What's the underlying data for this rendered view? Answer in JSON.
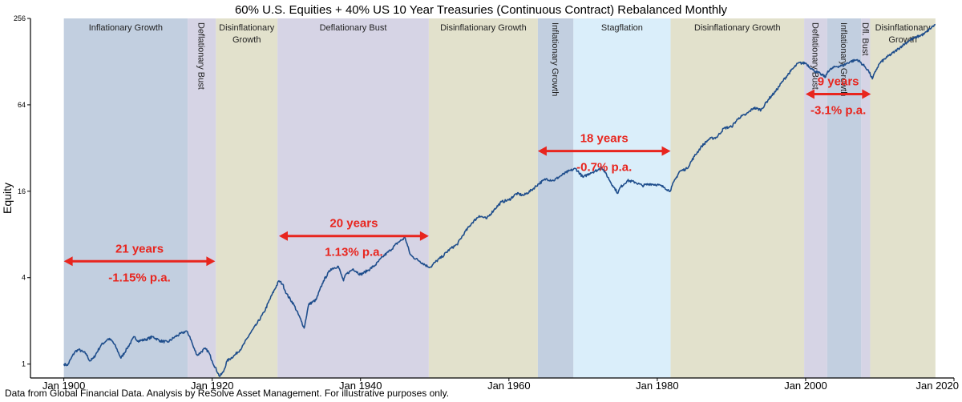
{
  "chart_data": {
    "type": "line",
    "title": "60% U.S. Equities + 40% US 10 Year Treasuries (Continuous Contract) Rebalanced Monthly",
    "ylabel": "Equity",
    "xlabel": "",
    "y_scale": "log2",
    "ylim": [
      0.8,
      256
    ],
    "xlim": [
      1895.5,
      2020
    ],
    "y_ticks": [
      1,
      4,
      16,
      64,
      256
    ],
    "y_tick_labels": [
      "1",
      "4",
      "16",
      "64",
      "256"
    ],
    "x_ticks": [
      1900,
      1920,
      1940,
      1960,
      1980,
      2000,
      2020
    ],
    "x_tick_labels": [
      "Jan 1900",
      "Jan 1920",
      "Jan 1940",
      "Jan 1960",
      "Jan 1980",
      "Jan 2000",
      "Jan 2020"
    ],
    "grid": false,
    "line_color": "#1f4e8c",
    "series": [
      {
        "name": "",
        "points": [
          [
            1900.0,
            1.0
          ],
          [
            1900.5,
            0.98
          ],
          [
            1901.0,
            1.1
          ],
          [
            1901.5,
            1.22
          ],
          [
            1902.0,
            1.26
          ],
          [
            1903.0,
            1.18
          ],
          [
            1903.5,
            1.05
          ],
          [
            1904.0,
            1.1
          ],
          [
            1905.0,
            1.35
          ],
          [
            1906.0,
            1.5
          ],
          [
            1906.5,
            1.45
          ],
          [
            1907.0,
            1.32
          ],
          [
            1907.7,
            1.1
          ],
          [
            1908.5,
            1.28
          ],
          [
            1909.5,
            1.55
          ],
          [
            1910.0,
            1.45
          ],
          [
            1911.0,
            1.48
          ],
          [
            1912.0,
            1.55
          ],
          [
            1913.0,
            1.45
          ],
          [
            1914.0,
            1.42
          ],
          [
            1915.0,
            1.55
          ],
          [
            1916.0,
            1.65
          ],
          [
            1916.5,
            1.7
          ],
          [
            1917.0,
            1.55
          ],
          [
            1917.5,
            1.3
          ],
          [
            1918.0,
            1.15
          ],
          [
            1919.0,
            1.28
          ],
          [
            1919.5,
            1.22
          ],
          [
            1920.0,
            1.05
          ],
          [
            1921.0,
            0.82
          ],
          [
            1921.5,
            0.88
          ],
          [
            1922.0,
            1.05
          ],
          [
            1923.0,
            1.15
          ],
          [
            1924.0,
            1.3
          ],
          [
            1925.0,
            1.6
          ],
          [
            1926.0,
            1.9
          ],
          [
            1927.0,
            2.3
          ],
          [
            1928.0,
            3.0
          ],
          [
            1929.0,
            3.8
          ],
          [
            1929.5,
            3.6
          ],
          [
            1930.0,
            3.1
          ],
          [
            1931.0,
            2.6
          ],
          [
            1932.0,
            2.0
          ],
          [
            1932.4,
            1.78
          ],
          [
            1933.0,
            2.6
          ],
          [
            1934.0,
            2.8
          ],
          [
            1935.0,
            3.8
          ],
          [
            1936.0,
            4.6
          ],
          [
            1937.0,
            4.8
          ],
          [
            1937.7,
            3.8
          ],
          [
            1938.0,
            4.2
          ],
          [
            1939.0,
            4.6
          ],
          [
            1940.0,
            4.2
          ],
          [
            1941.0,
            4.5
          ],
          [
            1942.0,
            4.9
          ],
          [
            1943.0,
            5.6
          ],
          [
            1944.0,
            6.2
          ],
          [
            1945.0,
            7.0
          ],
          [
            1946.0,
            7.6
          ],
          [
            1946.7,
            5.8
          ],
          [
            1947.0,
            5.6
          ],
          [
            1948.0,
            5.2
          ],
          [
            1949.0,
            4.8
          ],
          [
            1949.5,
            4.75
          ],
          [
            1950.0,
            5.1
          ],
          [
            1951.0,
            5.6
          ],
          [
            1952.0,
            6.3
          ],
          [
            1953.0,
            6.8
          ],
          [
            1954.0,
            8.2
          ],
          [
            1955.0,
            9.6
          ],
          [
            1956.0,
            10.8
          ],
          [
            1957.0,
            10.3
          ],
          [
            1958.0,
            11.9
          ],
          [
            1959.0,
            13.5
          ],
          [
            1960.0,
            13.9
          ],
          [
            1961.0,
            15.4
          ],
          [
            1962.0,
            15.0
          ],
          [
            1963.0,
            16.2
          ],
          [
            1964.0,
            18.0
          ],
          [
            1965.0,
            19.5
          ],
          [
            1966.0,
            19.0
          ],
          [
            1967.0,
            20.5
          ],
          [
            1968.0,
            22.0
          ],
          [
            1969.0,
            23.0
          ],
          [
            1970.0,
            20.0
          ],
          [
            1971.0,
            21.5
          ],
          [
            1972.0,
            22.5
          ],
          [
            1972.5,
            23.5
          ],
          [
            1973.0,
            21.5
          ],
          [
            1974.0,
            17.5
          ],
          [
            1974.7,
            15.5
          ],
          [
            1975.0,
            17.0
          ],
          [
            1976.0,
            19.0
          ],
          [
            1977.0,
            18.5
          ],
          [
            1978.0,
            17.5
          ],
          [
            1979.0,
            18.0
          ],
          [
            1980.0,
            17.8
          ],
          [
            1981.0,
            17.0
          ],
          [
            1981.7,
            16.0
          ],
          [
            1982.0,
            17.5
          ],
          [
            1983.0,
            22.0
          ],
          [
            1984.0,
            23.0
          ],
          [
            1985.0,
            28.0
          ],
          [
            1986.0,
            33.0
          ],
          [
            1987.0,
            37.0
          ],
          [
            1988.0,
            38.0
          ],
          [
            1989.0,
            44.0
          ],
          [
            1990.0,
            45.0
          ],
          [
            1991.0,
            52.0
          ],
          [
            1992.0,
            55.0
          ],
          [
            1993.0,
            61.0
          ],
          [
            1994.0,
            59.0
          ],
          [
            1995.0,
            70.0
          ],
          [
            1996.0,
            80.0
          ],
          [
            1997.0,
            95.0
          ],
          [
            1998.0,
            110.0
          ],
          [
            1999.0,
            125.0
          ],
          [
            2000.0,
            125.0
          ],
          [
            2001.0,
            112.0
          ],
          [
            2002.0,
            105.0
          ],
          [
            2002.7,
            100.0
          ],
          [
            2003.0,
            110.0
          ],
          [
            2004.0,
            118.0
          ],
          [
            2005.0,
            120.0
          ],
          [
            2006.0,
            128.0
          ],
          [
            2007.0,
            132.0
          ],
          [
            2008.0,
            118.0
          ],
          [
            2008.5,
            110.0
          ],
          [
            2009.0,
            97.0
          ],
          [
            2009.5,
            112.0
          ],
          [
            2010.0,
            125.0
          ],
          [
            2011.0,
            138.0
          ],
          [
            2012.0,
            150.0
          ],
          [
            2013.0,
            165.0
          ],
          [
            2014.0,
            180.0
          ],
          [
            2015.0,
            190.0
          ],
          [
            2016.0,
            200.0
          ],
          [
            2017.0,
            222.0
          ],
          [
            2017.5,
            232.0
          ]
        ]
      }
    ],
    "regimes": [
      {
        "label": "Inflationary Growth",
        "start": 1900.0,
        "end": 1916.7,
        "color": "#c2cfe0",
        "orient": "horizontal"
      },
      {
        "label": "Deflationary Bust",
        "start": 1916.7,
        "end": 1920.5,
        "color": "#d6d4e5",
        "orient": "vertical"
      },
      {
        "label": "Disinflationary Growth",
        "start": 1920.5,
        "end": 1928.8,
        "color": "#e2e1cc",
        "orient": "horizontal2",
        "line1": "Disinflationary",
        "line2": "Growth"
      },
      {
        "label": "Deflationary Bust",
        "start": 1928.8,
        "end": 1949.2,
        "color": "#d6d4e5",
        "orient": "horizontal"
      },
      {
        "label": "Disinflationary Growth",
        "start": 1949.2,
        "end": 1963.9,
        "color": "#e2e1cc",
        "orient": "horizontal"
      },
      {
        "label": "Inflationary Growth",
        "start": 1963.9,
        "end": 1968.7,
        "color": "#c2cfe0",
        "orient": "vertical"
      },
      {
        "label": "Stagflation",
        "start": 1968.7,
        "end": 1981.8,
        "color": "#daeefa",
        "orient": "horizontal"
      },
      {
        "label": "Disinflationary Growth",
        "start": 1981.8,
        "end": 1999.8,
        "color": "#e2e1cc",
        "orient": "horizontal"
      },
      {
        "label": "Deflationary Bust",
        "start": 1999.8,
        "end": 2002.9,
        "color": "#d6d4e5",
        "orient": "vertical"
      },
      {
        "label": "Inflationary Growth",
        "start": 2002.9,
        "end": 2007.5,
        "color": "#c2cfe0",
        "orient": "vertical"
      },
      {
        "label": "Dfl. Bust",
        "start": 2007.5,
        "end": 2008.7,
        "color": "#d6d4e5",
        "orient": "vertical"
      },
      {
        "label": "Disinflationary Growth",
        "start": 2008.7,
        "end": 2017.5,
        "color": "#e2e1cc",
        "orient": "horizontal2",
        "line1": "Disinflationary",
        "line2": "Growth"
      }
    ],
    "annotations": [
      {
        "x_start": 1900.0,
        "x_end": 1920.4,
        "y": 5.2,
        "line1": "21 years",
        "line2": "-1.15% p.a.",
        "color": "#e8251e"
      },
      {
        "x_start": 1929.0,
        "x_end": 1949.2,
        "y": 7.8,
        "line1": "20 years",
        "line2": "1.13% p.a.",
        "color": "#e8251e"
      },
      {
        "x_start": 1963.9,
        "x_end": 1981.8,
        "y": 30.5,
        "line1": "18 years",
        "line2": "-0.7% p.a.",
        "color": "#e8251e"
      },
      {
        "x_start": 2000.0,
        "x_end": 2008.8,
        "y": 76.0,
        "line1": "9 years",
        "line2": "-3.1% p.a.",
        "color": "#e8251e"
      }
    ]
  },
  "footer": {
    "text": "Data from Global Financial Data. Analysis by ReSolve Asset Management. For illustrative purposes only."
  }
}
